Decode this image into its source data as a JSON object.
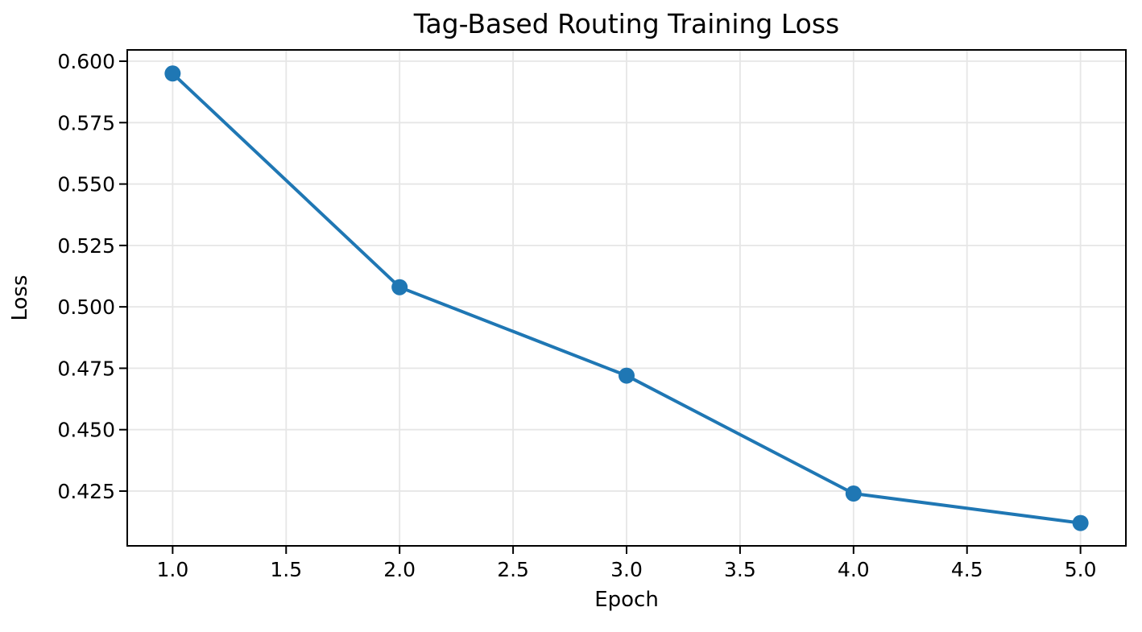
{
  "chart_data": {
    "type": "line",
    "title": "Tag-Based Routing Training Loss",
    "xlabel": "Epoch",
    "ylabel": "Loss",
    "x": [
      1,
      2,
      3,
      4,
      5
    ],
    "y": [
      0.595,
      0.508,
      0.472,
      0.424,
      0.412
    ],
    "xlim": [
      0.8,
      5.2
    ],
    "ylim": [
      0.4027,
      0.6046
    ],
    "xticks": [
      1.0,
      1.5,
      2.0,
      2.5,
      3.0,
      3.5,
      4.0,
      4.5,
      5.0
    ],
    "xtick_labels": [
      "1.0",
      "1.5",
      "2.0",
      "2.5",
      "3.0",
      "3.5",
      "4.0",
      "4.5",
      "5.0"
    ],
    "yticks": [
      0.425,
      0.45,
      0.475,
      0.5,
      0.525,
      0.55,
      0.575,
      0.6
    ],
    "ytick_labels": [
      "0.425",
      "0.450",
      "0.475",
      "0.500",
      "0.525",
      "0.550",
      "0.575",
      "0.600"
    ],
    "grid": true,
    "legend_position": "none",
    "line_color": "#1f77b4",
    "marker": "circle",
    "marker_color": "#1f77b4",
    "grid_color": "#e6e6e6",
    "axis_color": "#000000",
    "text_color": "#000000",
    "background_color": "#ffffff"
  }
}
